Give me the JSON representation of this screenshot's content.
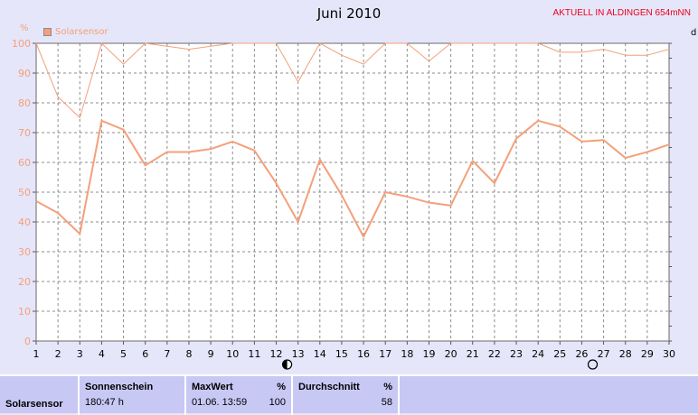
{
  "title": "Juni 2010",
  "badge": "AKTUELL IN ALDINGEN 654mNN",
  "y_unit": "%",
  "right_unit": "d",
  "colors": {
    "series": "#f4a07a",
    "badge": "#e8001c",
    "background": "#e6e6fa",
    "plot_bg": "#ffffff",
    "footer_bg": "#c8c8f5"
  },
  "chart_data": {
    "type": "line",
    "title": "Juni 2010",
    "ylabel": "%",
    "x": [
      1,
      2,
      3,
      4,
      5,
      6,
      7,
      8,
      9,
      10,
      11,
      12,
      13,
      14,
      15,
      16,
      17,
      18,
      19,
      20,
      21,
      22,
      23,
      24,
      25,
      26,
      27,
      28,
      29,
      30
    ],
    "ylim": [
      0,
      100
    ],
    "yticks": [
      0,
      10,
      20,
      30,
      40,
      50,
      60,
      70,
      80,
      90,
      100
    ],
    "grid": true,
    "legend": "top-left",
    "series": [
      {
        "name": "Solarsensor",
        "role": "max",
        "values": [
          100,
          82,
          75,
          100,
          93,
          100,
          99,
          98,
          99,
          100,
          100,
          100,
          87,
          100,
          96,
          93,
          100,
          100,
          94,
          100,
          100,
          100,
          100,
          100,
          97,
          97,
          98,
          96,
          96,
          98
        ]
      },
      {
        "name": "Solarsensor",
        "role": "average",
        "values": [
          47,
          43,
          36,
          74,
          71,
          59,
          63.5,
          63.5,
          64.5,
          67,
          64,
          53,
          40,
          61,
          49,
          35,
          50,
          48.5,
          46.5,
          45.5,
          60.5,
          53,
          68,
          74,
          72,
          67,
          67.5,
          61.5,
          63.5,
          66
        ]
      }
    ],
    "annotations": [
      {
        "x": 12.5,
        "symbol": "half-moon",
        "name": "half-moon-icon"
      },
      {
        "x": 26.5,
        "symbol": "full-moon",
        "name": "full-moon-icon"
      }
    ]
  },
  "footer": {
    "row_label": "Solarsensor",
    "sonnenschein": {
      "label": "Sonnenschein",
      "value": "180:47 h"
    },
    "maxwert": {
      "label": "MaxWert",
      "unit": "%",
      "date": "01.06.  13:59",
      "value": "100"
    },
    "durchschnitt": {
      "label": "Durchschnitt",
      "unit": "%",
      "value": "58"
    }
  }
}
